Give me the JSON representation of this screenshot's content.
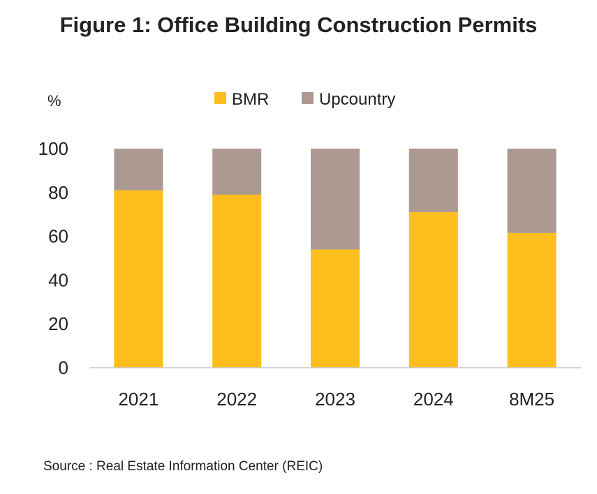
{
  "chart_data": {
    "type": "bar",
    "stacked": true,
    "title": "Figure 1: Office Building Construction Permits",
    "ylabel": "%",
    "xlabel": "",
    "categories": [
      "2021",
      "2022",
      "2023",
      "2024",
      "8M25"
    ],
    "series": [
      {
        "name": "BMR",
        "color": "#FDBE1E",
        "values": [
          81,
          79,
          54,
          71,
          61.5
        ]
      },
      {
        "name": "Upcountry",
        "color": "#AC9992",
        "values": [
          19,
          21,
          46,
          29,
          38.5
        ]
      }
    ],
    "ylim": [
      0,
      100
    ],
    "yticks": [
      0,
      20,
      40,
      60,
      80,
      100
    ],
    "grid": false,
    "legend_position": "top-center"
  },
  "source": "Source : Real Estate Information Center (REIC)"
}
